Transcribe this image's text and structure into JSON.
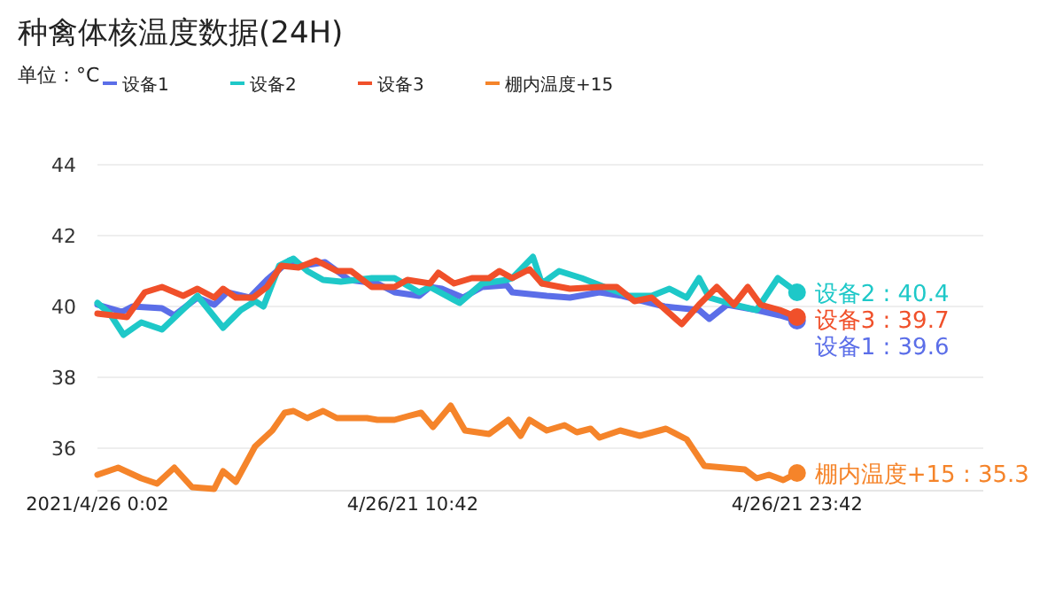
{
  "chart_data": {
    "type": "line",
    "title": "种禽体核温度数据(24H)",
    "subtitle": "单位：°C",
    "xlim": [
      "2021-04-26T00:02",
      "2021-04-27T06:00"
    ],
    "ylim": [
      34.8,
      44
    ],
    "xticks": [
      {
        "value": "2021-04-26T00:02",
        "label": "2021/4/26 0:02"
      },
      {
        "value": "2021-04-26T10:42",
        "label": "4/26/21 10:42"
      },
      {
        "value": "2021-04-26T23:42",
        "label": "4/26/21 23:42"
      }
    ],
    "yticks": [
      36,
      38,
      40,
      42,
      44
    ],
    "grid": "y",
    "legend": "top",
    "marker": "none",
    "line_style": "solid",
    "series": [
      {
        "name": "设备1",
        "color": "#5b6ee8",
        "x": [
          "2021-04-26T00:02",
          "2021-04-26T00:52",
          "2021-04-26T01:13",
          "2021-04-26T02:13",
          "2021-04-26T02:38",
          "2021-04-26T03:25",
          "2021-04-26T03:59",
          "2021-04-26T04:25",
          "2021-04-26T05:11",
          "2021-04-26T05:46",
          "2021-04-26T06:32",
          "2021-04-26T06:58",
          "2021-04-26T07:44",
          "2021-04-26T08:33",
          "2021-04-26T09:30",
          "2021-04-26T10:05",
          "2021-04-26T10:55",
          "2021-04-26T11:17",
          "2021-04-26T11:41",
          "2021-04-26T12:24",
          "2021-04-26T13:03",
          "2021-04-26T13:53",
          "2021-04-26T14:04",
          "2021-04-26T15:14",
          "2021-04-26T16:01",
          "2021-04-26T17:01",
          "2021-04-26T17:47",
          "2021-04-26T19:13",
          "2021-04-26T20:23",
          "2021-04-26T20:44",
          "2021-04-26T21:20",
          "2021-04-26T22:20",
          "2021-04-26T23:07",
          "2021-04-26T23:42"
        ],
        "values": [
          40.05,
          39.85,
          40.0,
          39.95,
          39.75,
          40.25,
          40.05,
          40.4,
          40.25,
          40.75,
          41.3,
          41.15,
          41.25,
          40.75,
          40.65,
          40.4,
          40.3,
          40.55,
          40.5,
          40.25,
          40.55,
          40.6,
          40.4,
          40.3,
          40.25,
          40.4,
          40.3,
          40.0,
          39.9,
          39.65,
          40.05,
          39.9,
          39.75,
          39.6
        ]
      },
      {
        "name": "设备2",
        "color": "#1ec8c8",
        "x": [
          "2021-04-26T00:02",
          "2021-04-26T00:27",
          "2021-04-26T00:55",
          "2021-04-26T01:31",
          "2021-04-26T02:13",
          "2021-04-26T03:25",
          "2021-04-26T04:17",
          "2021-04-26T04:53",
          "2021-04-26T05:22",
          "2021-04-26T05:39",
          "2021-04-26T06:11",
          "2021-04-26T06:40",
          "2021-04-26T07:08",
          "2021-04-26T07:40",
          "2021-04-26T08:16",
          "2021-04-26T09:19",
          "2021-04-26T10:05",
          "2021-04-26T10:55",
          "2021-04-26T11:17",
          "2021-04-26T12:17",
          "2021-04-26T13:03",
          "2021-04-26T13:53",
          "2021-04-26T14:04",
          "2021-04-26T14:46",
          "2021-04-26T15:04",
          "2021-04-26T15:39",
          "2021-04-26T16:25",
          "2021-04-26T17:11",
          "2021-04-26T18:01",
          "2021-04-26T18:47",
          "2021-04-26T19:23",
          "2021-04-26T19:58",
          "2021-04-26T20:23",
          "2021-04-26T20:44",
          "2021-04-26T21:34",
          "2021-04-26T22:20",
          "2021-04-26T23:03",
          "2021-04-26T23:42"
        ],
        "values": [
          40.1,
          39.8,
          39.2,
          39.55,
          39.35,
          40.3,
          39.4,
          39.9,
          40.15,
          40.0,
          41.15,
          41.35,
          41.0,
          40.75,
          40.7,
          40.8,
          40.8,
          40.4,
          40.55,
          40.1,
          40.65,
          40.75,
          40.8,
          41.4,
          40.65,
          41.0,
          40.8,
          40.55,
          40.3,
          40.3,
          40.5,
          40.25,
          40.8,
          40.25,
          40.05,
          39.9,
          40.8,
          40.4
        ]
      },
      {
        "name": "设备3",
        "color": "#f0502a",
        "x": [
          "2021-04-26T00:02",
          "2021-04-26T01:02",
          "2021-04-26T01:38",
          "2021-04-26T02:13",
          "2021-04-26T02:56",
          "2021-04-26T03:25",
          "2021-04-26T03:59",
          "2021-04-26T04:17",
          "2021-04-26T04:43",
          "2021-04-26T05:18",
          "2021-04-26T05:46",
          "2021-04-26T06:15",
          "2021-04-26T06:50",
          "2021-04-26T07:26",
          "2021-04-26T08:08",
          "2021-04-26T08:37",
          "2021-04-26T09:19",
          "2021-04-26T10:05",
          "2021-04-26T10:31",
          "2021-04-26T11:17",
          "2021-04-26T11:34",
          "2021-04-26T12:06",
          "2021-04-26T12:42",
          "2021-04-26T13:17",
          "2021-04-26T13:38",
          "2021-04-26T14:04",
          "2021-04-26T14:39",
          "2021-04-26T15:04",
          "2021-04-26T16:01",
          "2021-04-26T17:01",
          "2021-04-26T17:36",
          "2021-04-26T18:12",
          "2021-04-26T18:47",
          "2021-04-26T19:48",
          "2021-04-26T20:23",
          "2021-04-26T20:59",
          "2021-04-26T21:34",
          "2021-04-26T22:02",
          "2021-04-26T22:28",
          "2021-04-26T23:07",
          "2021-04-26T23:42"
        ],
        "values": [
          39.8,
          39.7,
          40.4,
          40.55,
          40.3,
          40.5,
          40.25,
          40.5,
          40.25,
          40.25,
          40.55,
          41.15,
          41.1,
          41.3,
          41.0,
          41.0,
          40.55,
          40.55,
          40.75,
          40.65,
          40.95,
          40.65,
          40.8,
          40.8,
          41.0,
          40.8,
          41.05,
          40.65,
          40.5,
          40.55,
          40.55,
          40.15,
          40.25,
          39.5,
          40.05,
          40.55,
          40.05,
          40.55,
          40.05,
          39.9,
          39.7
        ]
      },
      {
        "name": "棚内温度+15",
        "color": "#f5842a",
        "x": [
          "2021-04-26T00:02",
          "2021-04-26T00:44",
          "2021-04-26T01:31",
          "2021-04-26T02:03",
          "2021-04-26T02:38",
          "2021-04-26T03:14",
          "2021-04-26T03:59",
          "2021-04-26T04:17",
          "2021-04-26T04:43",
          "2021-04-26T05:22",
          "2021-04-26T05:57",
          "2021-04-26T06:22",
          "2021-04-26T06:40",
          "2021-04-26T07:08",
          "2021-04-26T07:40",
          "2021-04-26T08:08",
          "2021-04-26T09:09",
          "2021-04-26T09:30",
          "2021-04-26T10:05",
          "2021-04-26T10:31",
          "2021-04-26T10:59",
          "2021-04-26T11:23",
          "2021-04-26T11:59",
          "2021-04-26T12:28",
          "2021-04-26T13:17",
          "2021-04-26T13:56",
          "2021-04-26T14:21",
          "2021-04-26T14:39",
          "2021-04-26T15:14",
          "2021-04-26T15:50",
          "2021-04-26T16:15",
          "2021-04-26T16:43",
          "2021-04-26T17:01",
          "2021-04-26T17:43",
          "2021-04-26T18:23",
          "2021-04-26T19:16",
          "2021-04-26T19:58",
          "2021-04-26T20:34",
          "2021-04-26T21:56",
          "2021-04-26T22:20",
          "2021-04-26T22:45",
          "2021-04-26T23:14",
          "2021-04-26T23:42"
        ],
        "values": [
          35.25,
          35.45,
          35.15,
          35.0,
          35.45,
          34.9,
          34.85,
          35.35,
          35.05,
          36.05,
          36.5,
          37.0,
          37.05,
          36.85,
          37.05,
          36.85,
          36.85,
          36.8,
          36.8,
          36.9,
          37.0,
          36.6,
          37.2,
          36.5,
          36.4,
          36.8,
          36.35,
          36.8,
          36.5,
          36.65,
          36.45,
          36.55,
          36.3,
          36.5,
          36.35,
          36.55,
          36.25,
          35.5,
          35.4,
          35.15,
          35.25,
          35.1,
          35.3
        ]
      }
    ],
    "annotations": [
      {
        "text": "设备2 : 40.4",
        "x": "2021-04-26T23:42",
        "y": 40.4
      },
      {
        "text": "设备3 : 39.7",
        "x": "2021-04-26T23:42",
        "y": 39.7
      },
      {
        "text": "设备1 : 39.6",
        "x": "2021-04-26T23:42",
        "y": 39.6
      },
      {
        "text": "棚内温度+15 : 35.3",
        "x": "2021-04-26T23:42",
        "y": 35.3
      }
    ]
  }
}
